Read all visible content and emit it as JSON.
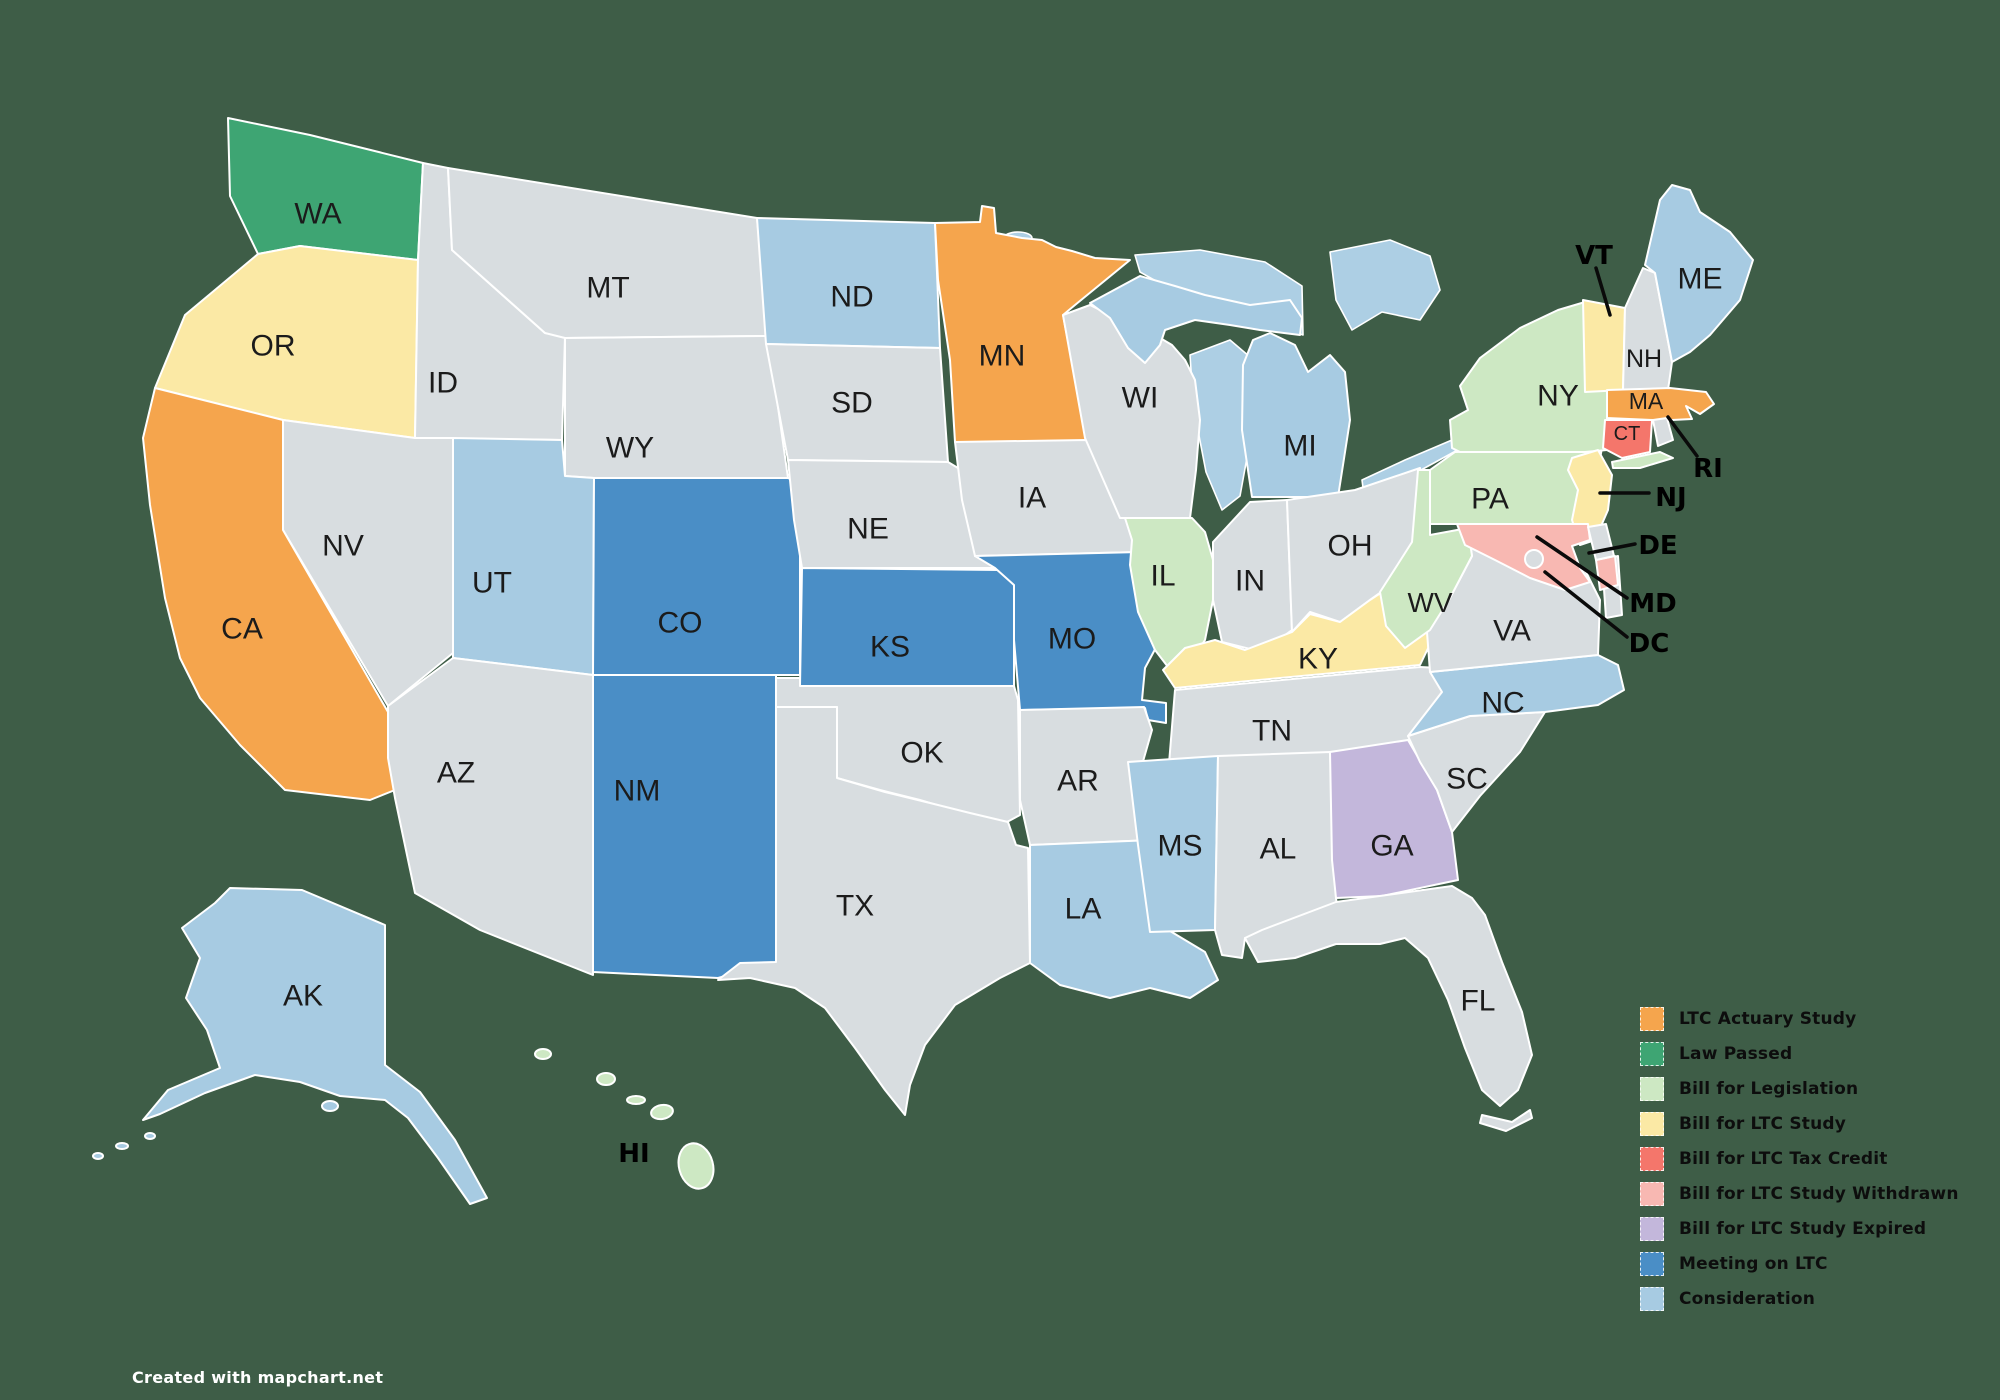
{
  "map": {
    "background_color": "#3E5D47",
    "border_color": "#FFFFFF",
    "no_status_color": "#D8DDE0",
    "lake_color": "#ADCFE4",
    "label_color": "#1B1B1B",
    "states": [
      {
        "abbr": "WA",
        "status": "law-passed"
      },
      {
        "abbr": "OR",
        "status": "bill-for-ltc-study"
      },
      {
        "abbr": "ID",
        "status": "none"
      },
      {
        "abbr": "MT",
        "status": "none"
      },
      {
        "abbr": "WY",
        "status": "none"
      },
      {
        "abbr": "NV",
        "status": "none"
      },
      {
        "abbr": "UT",
        "status": "consideration"
      },
      {
        "abbr": "CA",
        "status": "ltc-actuary-study"
      },
      {
        "abbr": "CO",
        "status": "meeting-on-ltc"
      },
      {
        "abbr": "AZ",
        "status": "none"
      },
      {
        "abbr": "NM",
        "status": "meeting-on-ltc"
      },
      {
        "abbr": "ND",
        "status": "consideration"
      },
      {
        "abbr": "SD",
        "status": "none"
      },
      {
        "abbr": "NE",
        "status": "none"
      },
      {
        "abbr": "KS",
        "status": "meeting-on-ltc"
      },
      {
        "abbr": "OK",
        "status": "none"
      },
      {
        "abbr": "TX",
        "status": "none"
      },
      {
        "abbr": "MN",
        "status": "ltc-actuary-study"
      },
      {
        "abbr": "IA",
        "status": "none"
      },
      {
        "abbr": "MO",
        "status": "meeting-on-ltc"
      },
      {
        "abbr": "AR",
        "status": "none"
      },
      {
        "abbr": "LA",
        "status": "consideration"
      },
      {
        "abbr": "WI",
        "status": "none"
      },
      {
        "abbr": "MI",
        "status": "consideration"
      },
      {
        "abbr": "IL",
        "status": "bill-for-legislation"
      },
      {
        "abbr": "IN",
        "status": "none"
      },
      {
        "abbr": "OH",
        "status": "none"
      },
      {
        "abbr": "KY",
        "status": "bill-for-ltc-study"
      },
      {
        "abbr": "TN",
        "status": "none"
      },
      {
        "abbr": "MS",
        "status": "consideration"
      },
      {
        "abbr": "AL",
        "status": "none"
      },
      {
        "abbr": "GA",
        "status": "bill-for-ltc-study-expired"
      },
      {
        "abbr": "FL",
        "status": "none"
      },
      {
        "abbr": "SC",
        "status": "none"
      },
      {
        "abbr": "NC",
        "status": "consideration"
      },
      {
        "abbr": "VA",
        "status": "none"
      },
      {
        "abbr": "WV",
        "status": "bill-for-legislation"
      },
      {
        "abbr": "PA",
        "status": "bill-for-legislation"
      },
      {
        "abbr": "NY",
        "status": "bill-for-legislation"
      },
      {
        "abbr": "NJ",
        "status": "bill-for-ltc-study"
      },
      {
        "abbr": "MD",
        "status": "bill-for-ltc-study-withdrawn"
      },
      {
        "abbr": "DE",
        "status": "none"
      },
      {
        "abbr": "VT",
        "status": "bill-for-ltc-study"
      },
      {
        "abbr": "NH",
        "status": "none"
      },
      {
        "abbr": "MA",
        "status": "ltc-actuary-study"
      },
      {
        "abbr": "CT",
        "status": "bill-for-ltc-tax-credit"
      },
      {
        "abbr": "RI",
        "status": "none"
      },
      {
        "abbr": "ME",
        "status": "consideration"
      },
      {
        "abbr": "AK",
        "status": "consideration"
      },
      {
        "abbr": "HI",
        "status": "bill-for-legislation"
      },
      {
        "abbr": "DC",
        "status": "none"
      }
    ]
  },
  "legend": {
    "items": [
      {
        "id": "ltc-actuary-study",
        "label": "LTC Actuary Study",
        "color": "#F5A54D"
      },
      {
        "id": "law-passed",
        "label": "Law Passed",
        "color": "#3EA573"
      },
      {
        "id": "bill-for-legislation",
        "label": "Bill for Legislation",
        "color": "#CDE8C3"
      },
      {
        "id": "bill-for-ltc-study",
        "label": "Bill for LTC Study",
        "color": "#FBE9A5"
      },
      {
        "id": "bill-for-ltc-tax-credit",
        "label": "Bill for LTC Tax Credit",
        "color": "#F4766B"
      },
      {
        "id": "bill-for-ltc-study-withdrawn",
        "label": "Bill for LTC Study Withdrawn",
        "color": "#F8B8B2"
      },
      {
        "id": "bill-for-ltc-study-expired",
        "label": "Bill for LTC Study Expired",
        "color": "#C3B7DB"
      },
      {
        "id": "meeting-on-ltc",
        "label": "Meeting on LTC",
        "color": "#4A8EC6"
      },
      {
        "id": "consideration",
        "label": "Consideration",
        "color": "#A7CBE2"
      }
    ]
  },
  "footer": {
    "credit": "Created with mapchart.net"
  }
}
